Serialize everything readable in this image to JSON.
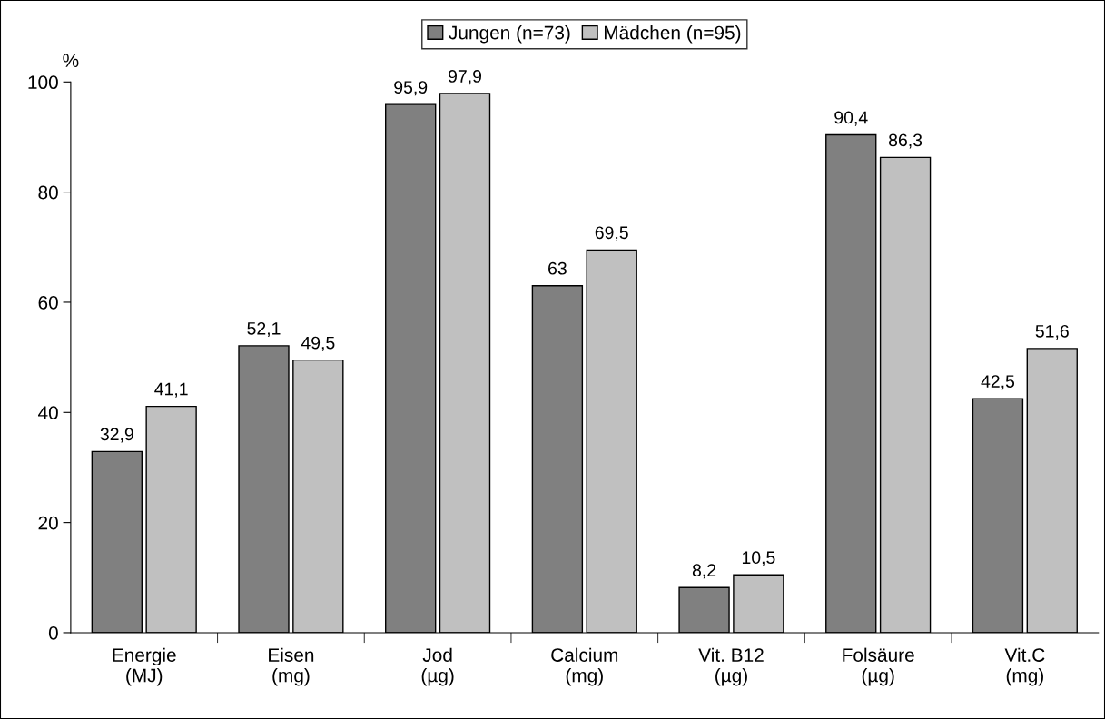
{
  "chart_data": {
    "type": "bar",
    "ylabel": "%",
    "categories": [
      "Energie\n(MJ)",
      "Eisen\n(mg)",
      "Jod\n(µg)",
      "Calcium\n(mg)",
      "Vit. B12\n(µg)",
      "Folsäure\n(µg)",
      "Vit.C\n(mg)"
    ],
    "series": [
      {
        "name": "Jungen (n=73)",
        "color": "#808080",
        "values": [
          32.9,
          52.1,
          95.9,
          63,
          8.2,
          90.4,
          42.5
        ],
        "value_labels": [
          "32,9",
          "52,1",
          "95,9",
          "63",
          "8,2",
          "90,4",
          "42,5"
        ]
      },
      {
        "name": "Mädchen (n=95)",
        "color": "#c0c0c0",
        "values": [
          41.1,
          49.5,
          97.9,
          69.5,
          10.5,
          86.3,
          51.6
        ],
        "value_labels": [
          "41,1",
          "49,5",
          "97,9",
          "69,5",
          "10,5",
          "86,3",
          "51,6"
        ]
      }
    ],
    "ylim": [
      0,
      100
    ],
    "yticks": [
      0,
      20,
      40,
      60,
      80,
      100
    ],
    "grid": false,
    "legend": "top"
  }
}
